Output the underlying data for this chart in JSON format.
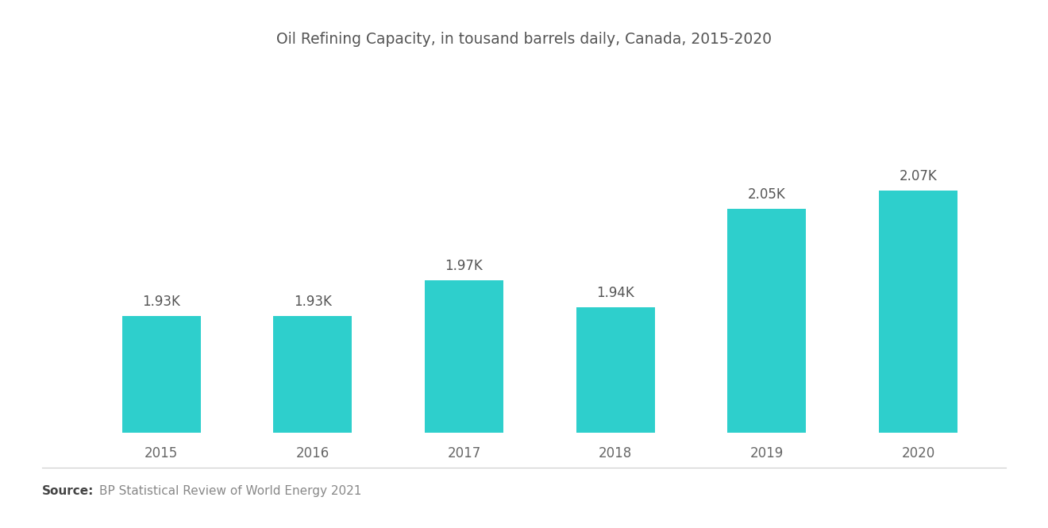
{
  "title": "Oil Refining Capacity, in tousand barrels daily, Canada, 2015-2020",
  "categories": [
    "2015",
    "2016",
    "2017",
    "2018",
    "2019",
    "2020"
  ],
  "values": [
    1930,
    1930,
    1970,
    1940,
    2050,
    2070
  ],
  "labels": [
    "1.93K",
    "1.93K",
    "1.97K",
    "1.94K",
    "2.05K",
    "2.07K"
  ],
  "bar_color": "#2ecfcc",
  "background_color": "#ffffff",
  "source_bold": "Source:",
  "source_text": "BP Statistical Review of World Energy 2021",
  "title_fontsize": 13.5,
  "label_fontsize": 12,
  "tick_fontsize": 12,
  "source_fontsize": 11,
  "ylim_min": 1800,
  "ylim_max": 2200,
  "bar_width": 0.52
}
